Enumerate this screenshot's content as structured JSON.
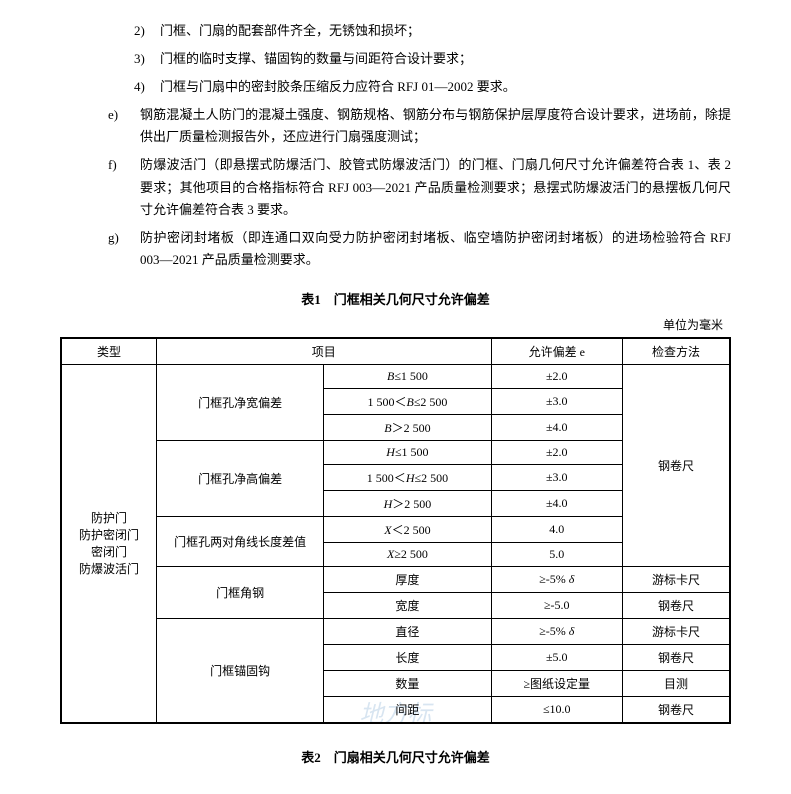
{
  "sublist": [
    {
      "marker": "2)",
      "text": "门框、门扇的配套部件齐全，无锈蚀和损坏；"
    },
    {
      "marker": "3)",
      "text": "门框的临时支撑、锚固钩的数量与间距符合设计要求；"
    },
    {
      "marker": "4)",
      "text": "门框与门扇中的密封胶条压缩反力应符合 RFJ 01—2002 要求。"
    }
  ],
  "mainlist": [
    {
      "marker": "e)",
      "text": "钢筋混凝土人防门的混凝土强度、钢筋规格、钢筋分布与钢筋保护层厚度符合设计要求，进场前，除提供出厂质量检测报告外，还应进行门扇强度测试；"
    },
    {
      "marker": "f)",
      "text": "防爆波活门（即悬摆式防爆活门、胶管式防爆波活门）的门框、门扇几何尺寸允许偏差符合表 1、表 2 要求；其他项目的合格指标符合 RFJ 003—2021 产品质量检测要求；悬摆式防爆波活门的悬摆板几何尺寸允许偏差符合表 3 要求。"
    },
    {
      "marker": "g)",
      "text": "防护密闭封堵板（即连通口双向受力防护密闭封堵板、临空墙防护密闭封堵板）的进场检验符合 RFJ 003—2021 产品质量检测要求。"
    }
  ],
  "table1": {
    "title": "表1　门框相关几何尺寸允许偏差",
    "unit": "单位为毫米",
    "headers": {
      "type": "类型",
      "item": "项目",
      "tol": "允许偏差 e",
      "method": "检查方法"
    },
    "type_label": "防护门\n防护密闭门\n密闭门\n防爆波活门",
    "groups": [
      {
        "name": "门框孔净宽偏差",
        "rows": [
          {
            "range": "B≤1 500",
            "tol": "±2.0"
          },
          {
            "range": "1 500＜B≤2 500",
            "tol": "±3.0"
          },
          {
            "range": "B＞2 500",
            "tol": "±4.0"
          }
        ],
        "method": "钢卷尺"
      },
      {
        "name": "门框孔净高偏差",
        "rows": [
          {
            "range": "H≤1 500",
            "tol": "±2.0"
          },
          {
            "range": "1 500＜H≤2 500",
            "tol": "±3.0"
          },
          {
            "range": "H＞2 500",
            "tol": "±4.0"
          }
        ]
      },
      {
        "name": "门框孔两对角线长度差值",
        "rows": [
          {
            "range": "X＜2 500",
            "tol": "4.0"
          },
          {
            "range": "X≥2 500",
            "tol": "5.0"
          }
        ]
      },
      {
        "name": "门框角钢",
        "rows": [
          {
            "range": "厚度",
            "tol": "≥-5% δ",
            "method": "游标卡尺"
          },
          {
            "range": "宽度",
            "tol": "≥-5.0",
            "method": "钢卷尺"
          }
        ]
      },
      {
        "name": "门框锚固钩",
        "rows": [
          {
            "range": "直径",
            "tol": "≥-5% δ",
            "method": "游标卡尺"
          },
          {
            "range": "长度",
            "tol": "±5.0",
            "method": "钢卷尺"
          },
          {
            "range": "数量",
            "tol": "≥图纸设定量",
            "method": "目测"
          },
          {
            "range": "间距",
            "tol": "≤10.0",
            "method": "钢卷尺"
          }
        ]
      }
    ]
  },
  "table2": {
    "title": "表2　门扇相关几何尺寸允许偏差"
  },
  "watermark": "地方标"
}
